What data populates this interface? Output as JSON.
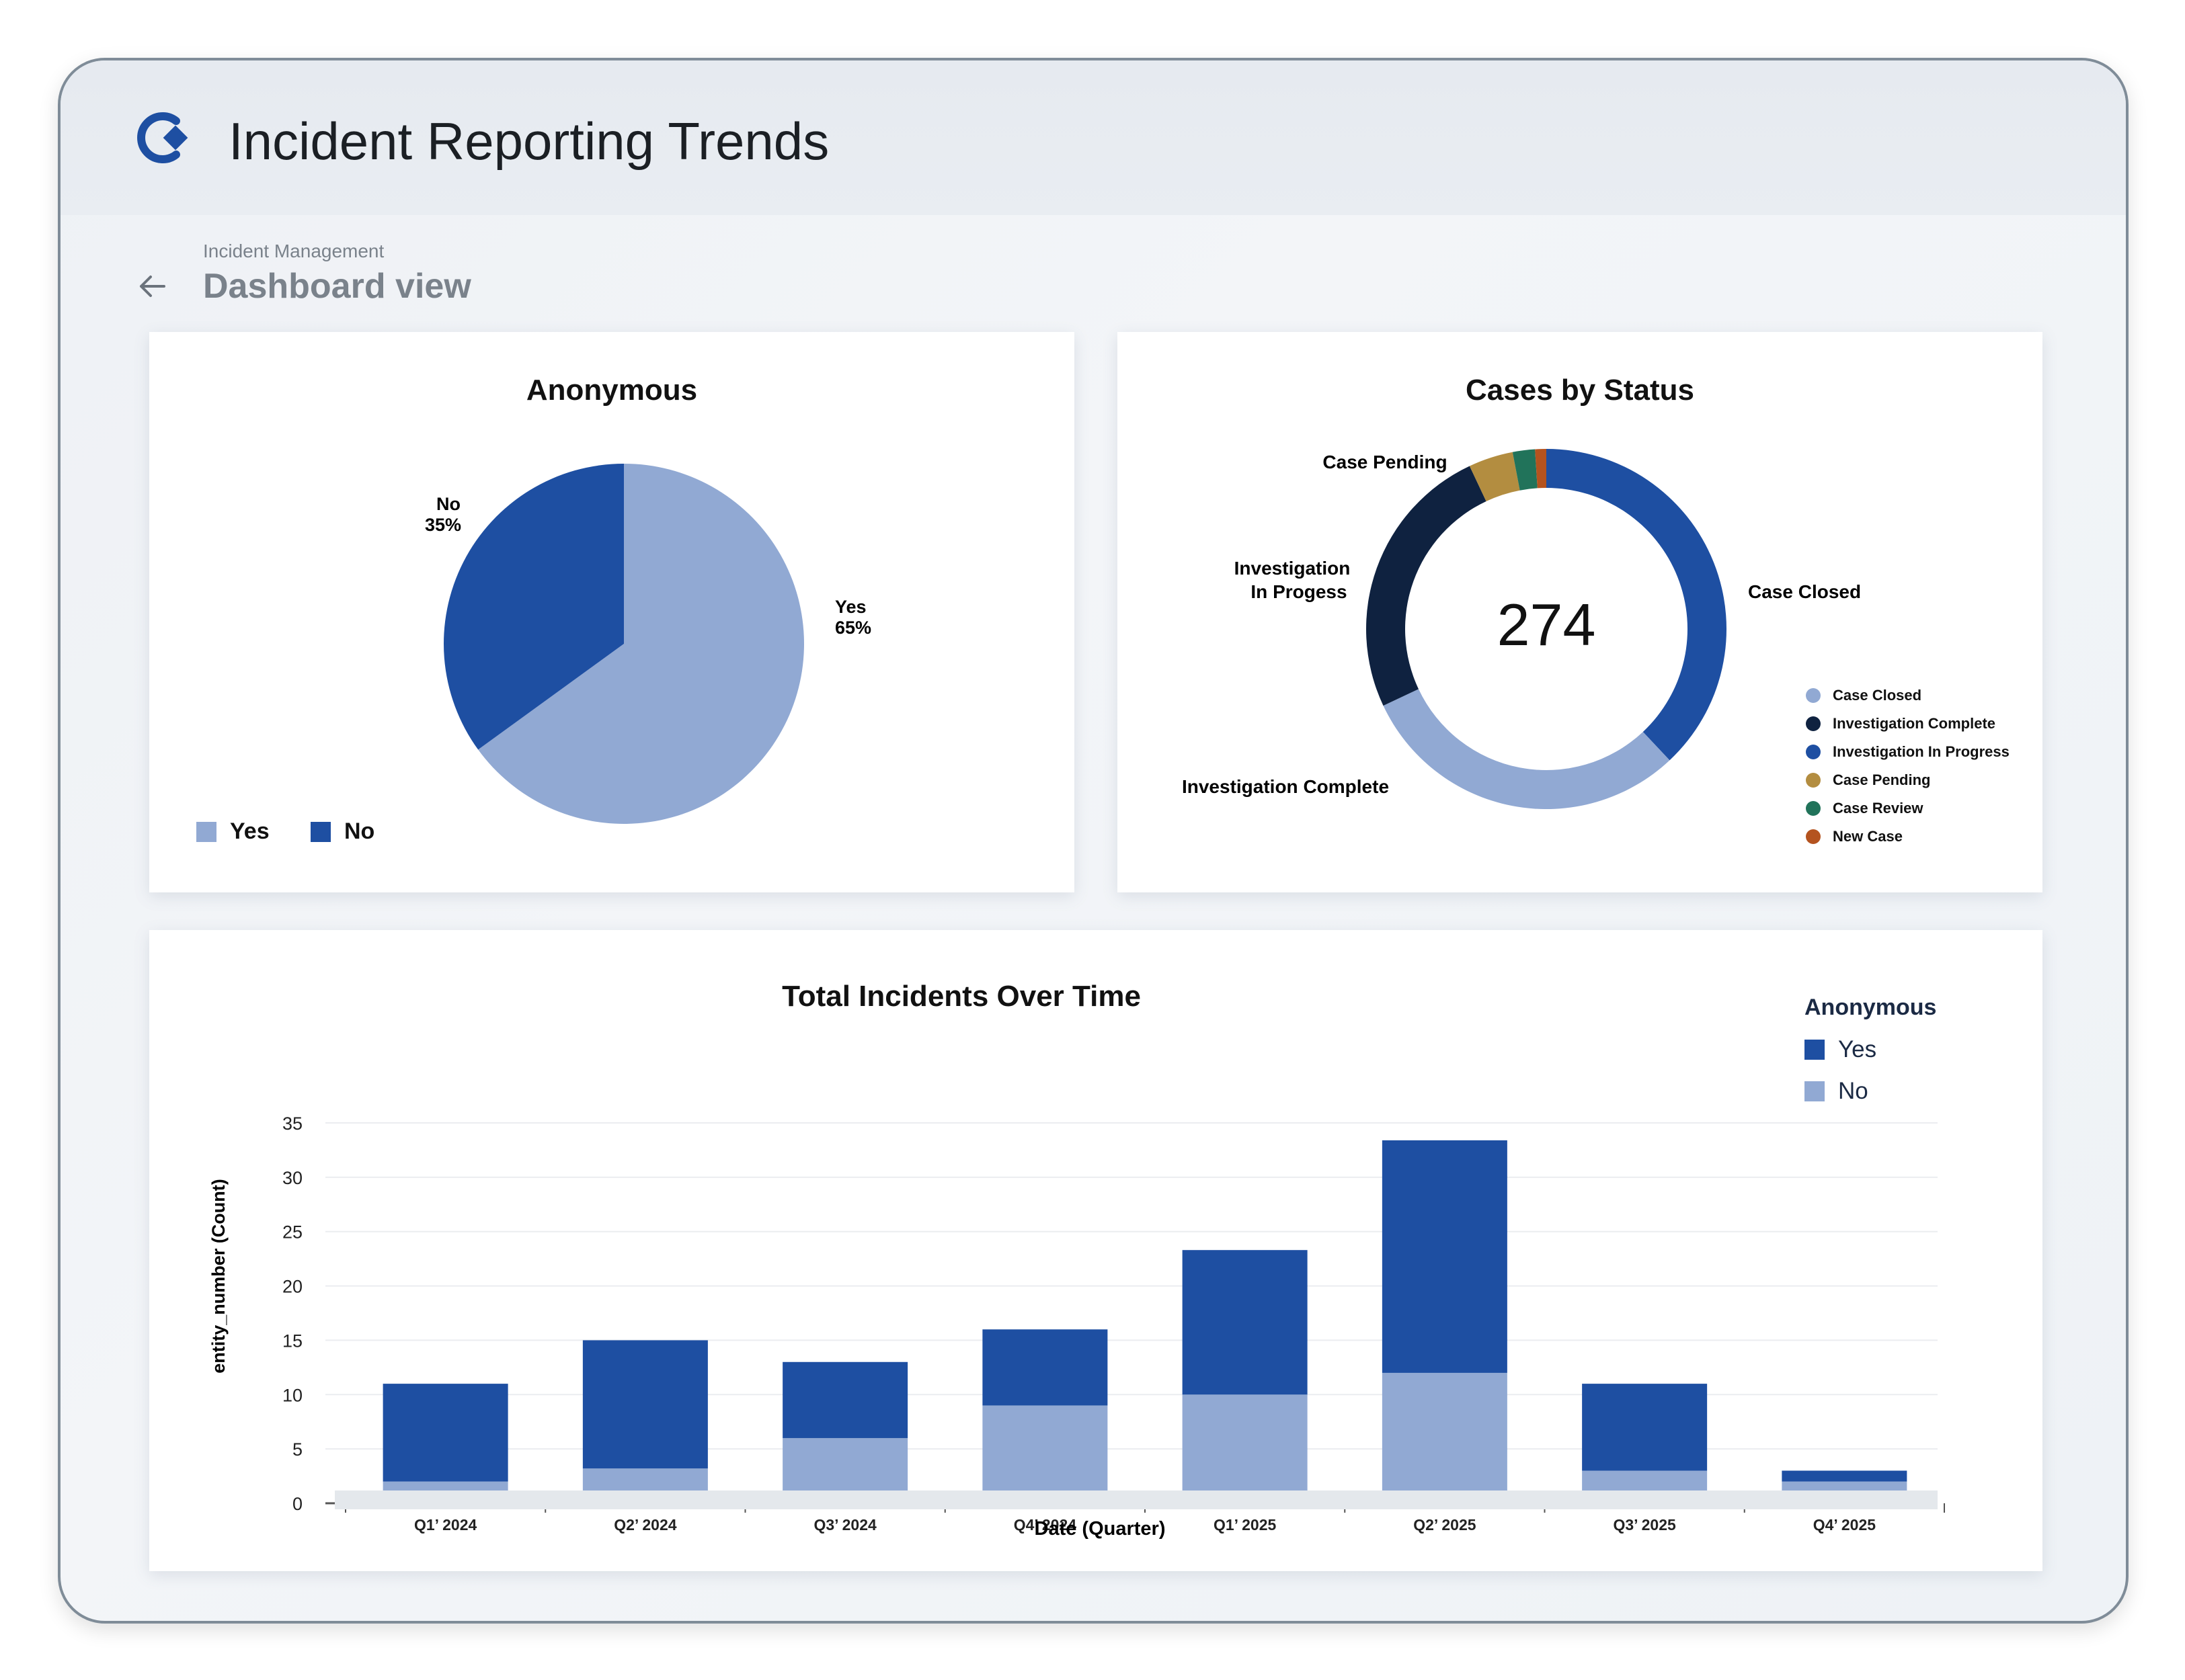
{
  "header": {
    "title": "Incident Reporting Trends"
  },
  "breadcrumb": {
    "parent": "Incident Management",
    "title": "Dashboard view"
  },
  "colors": {
    "yes_light": "#91a9d3",
    "no_dark": "#1e4fa2",
    "case_closed": "#91a9d3",
    "investigation_complete": "#0f2240",
    "investigation_in_progress": "#1e4fa2",
    "case_pending": "#b38d40",
    "case_review": "#21735a",
    "new_case": "#b4531f"
  },
  "anonymous_card": {
    "title": "Anonymous",
    "labels": [
      {
        "name": "No",
        "pct": "35%"
      },
      {
        "name": "Yes",
        "pct": "65%"
      }
    ],
    "legend": [
      {
        "label": "Yes",
        "color": "#91a9d3"
      },
      {
        "label": "No",
        "color": "#1e4fa2"
      }
    ]
  },
  "status_card": {
    "title": "Cases by Status",
    "total": "274",
    "callouts": {
      "case_pending": "Case Pending",
      "investigation_line1": "Investigation",
      "investigation_line2": "In Progess",
      "case_closed": "Case Closed",
      "investigation_complete": "Investigation Complete"
    },
    "legend": [
      {
        "label": "Case Closed",
        "color": "#91a9d3"
      },
      {
        "label": "Investigation Complete",
        "color": "#0f2240"
      },
      {
        "label": "Investigation In Progress",
        "color": "#1e4fa2"
      },
      {
        "label": "Case Pending",
        "color": "#b38d40"
      },
      {
        "label": "Case Review",
        "color": "#21735a"
      },
      {
        "label": "New Case",
        "color": "#b4531f"
      }
    ]
  },
  "incidents_card": {
    "title": "Total Incidents Over Time",
    "legend_title": "Anonymous",
    "legend": [
      {
        "label": "Yes",
        "color": "#1e4fa2"
      },
      {
        "label": "No",
        "color": "#91a9d3"
      }
    ]
  },
  "chart_data": [
    {
      "type": "pie",
      "title": "Anonymous",
      "categories": [
        "Yes",
        "No"
      ],
      "values": [
        65,
        35
      ],
      "unit": "%"
    },
    {
      "type": "pie",
      "variant": "donut",
      "title": "Cases by Status",
      "center_label": "274",
      "categories": [
        "Case Closed",
        "Investigation Complete",
        "Investigation In Progress",
        "Case Pending",
        "Case Review",
        "New Case"
      ],
      "values": [
        0.3,
        0.25,
        0.38,
        0.04,
        0.02,
        0.01
      ],
      "legend": "right"
    },
    {
      "type": "bar",
      "stacked": true,
      "title": "Total Incidents Over Time",
      "xlabel": "Date (Quarter)",
      "ylabel": "entity_number (Count)",
      "categories": [
        "Q1’ 2024",
        "Q2’ 2024",
        "Q3’ 2024",
        "Q4’ 2024",
        "Q1’ 2025",
        "Q2’ 2025",
        "Q3’ 2025",
        "Q4’ 2025"
      ],
      "series": [
        {
          "name": "No",
          "values": [
            2,
            3.2,
            6,
            9,
            10,
            12,
            3,
            2
          ]
        },
        {
          "name": "Yes",
          "values": [
            9,
            11.8,
            7,
            7,
            13.3,
            21.4,
            8,
            1
          ]
        }
      ],
      "ylim": [
        0,
        35
      ],
      "yticks": [
        0,
        5,
        10,
        15,
        20,
        25,
        30,
        35
      ],
      "grid": true,
      "legend": "top-right"
    }
  ]
}
